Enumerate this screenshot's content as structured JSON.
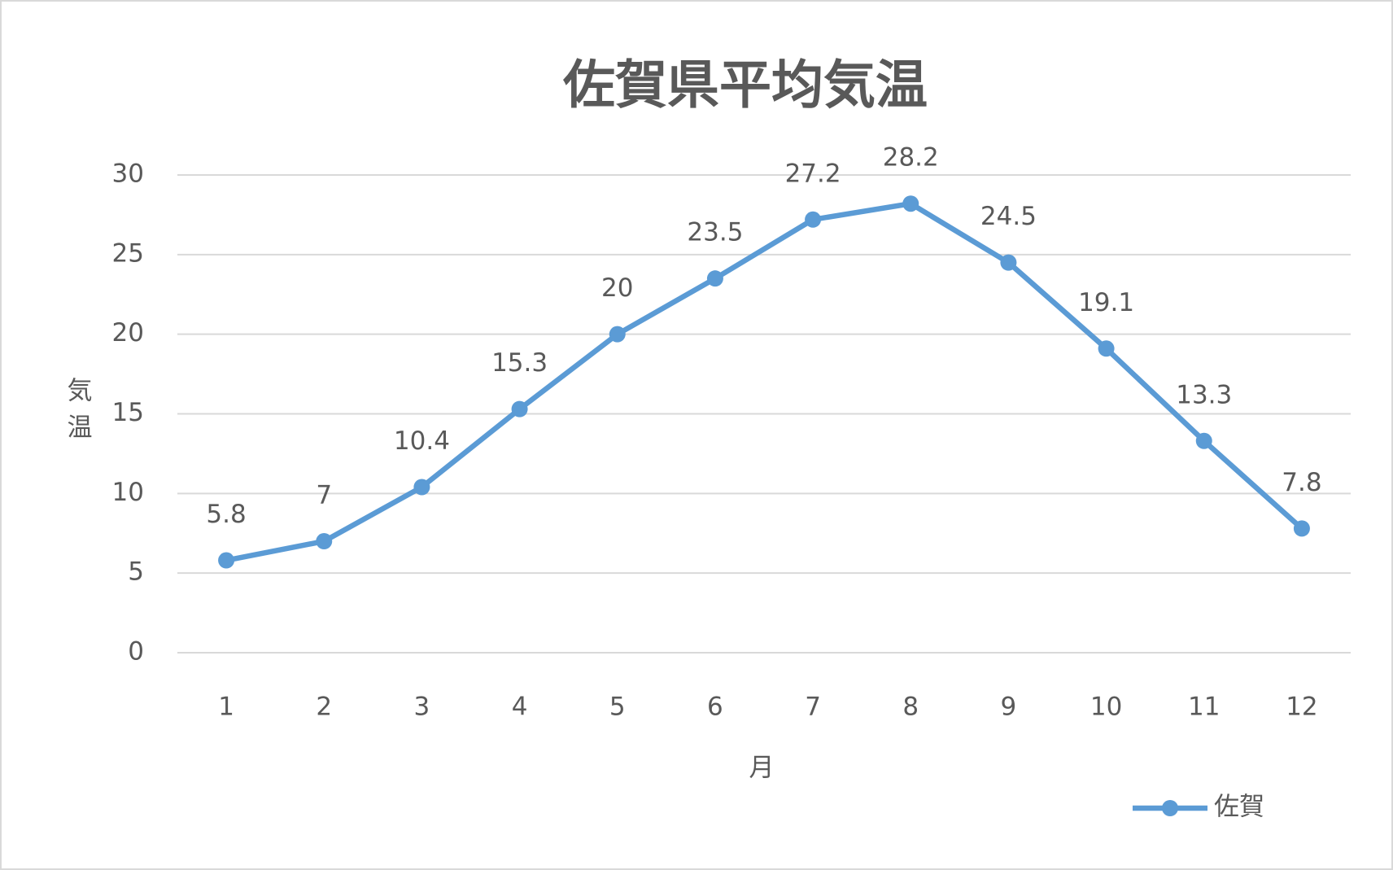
{
  "chart_data": {
    "type": "line",
    "title": "佐賀県平均気温",
    "x_label": "月",
    "y_label": "気温",
    "categories": [
      "1",
      "2",
      "3",
      "4",
      "5",
      "6",
      "7",
      "8",
      "9",
      "10",
      "11",
      "12"
    ],
    "series": [
      {
        "name": "佐賀",
        "color": "#5b9bd5",
        "values": [
          5.8,
          7,
          10.4,
          15.3,
          20,
          23.5,
          27.2,
          28.2,
          24.5,
          19.1,
          13.3,
          7.8
        ]
      }
    ],
    "ylim": [
      0,
      30
    ],
    "yticks": [
      0,
      5,
      10,
      15,
      20,
      25,
      30
    ],
    "grid": true,
    "legend": "bottom-right"
  }
}
